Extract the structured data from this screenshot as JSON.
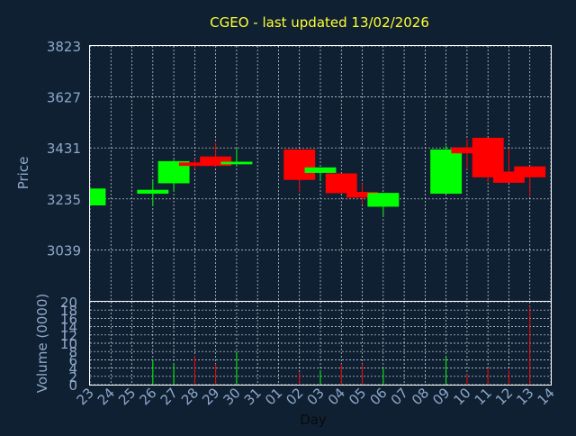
{
  "colors": {
    "background": "#0f2033",
    "plot_border": "#ffffff",
    "grid": "#ffffff",
    "title": "#ffff33",
    "axis_text": "#8fa8c8",
    "up": "#00ff00",
    "down": "#ff0000"
  },
  "chart_data": [
    {
      "type": "candlestick",
      "title": "CGEO - last updated 13/02/2026",
      "ylabel": "Price",
      "xlabel": "Day",
      "ylim": [
        2843,
        3823
      ],
      "y_ticks": [
        3823,
        3627,
        3431,
        3235,
        3039
      ],
      "grid": true,
      "x_tick_labels": [
        "23",
        "24",
        "25",
        "26",
        "27",
        "28",
        "29",
        "30",
        "31",
        "01",
        "02",
        "03",
        "04",
        "05",
        "06",
        "07",
        "08",
        "09",
        "10",
        "11",
        "12",
        "13",
        "14"
      ],
      "candles": [
        {
          "day": "23",
          "open": 3210,
          "close": 3275,
          "high": 3275,
          "low": 3210
        },
        {
          "day": "26",
          "open": 3255,
          "close": 3270,
          "high": 3305,
          "low": 3210
        },
        {
          "day": "27",
          "open": 3295,
          "close": 3380,
          "high": 3385,
          "low": 3265
        },
        {
          "day": "28",
          "open": 3375,
          "close": 3362,
          "high": 3390,
          "low": 3350
        },
        {
          "day": "29",
          "open": 3398,
          "close": 3362,
          "high": 3450,
          "low": 3360
        },
        {
          "day": "30",
          "open": 3368,
          "close": 3378,
          "high": 3432,
          "low": 3368
        },
        {
          "day": "02",
          "open": 3425,
          "close": 3308,
          "high": 3425,
          "low": 3260
        },
        {
          "day": "03",
          "open": 3335,
          "close": 3356,
          "high": 3356,
          "low": 3305
        },
        {
          "day": "04",
          "open": 3333,
          "close": 3257,
          "high": 3333,
          "low": 3257
        },
        {
          "day": "05",
          "open": 3262,
          "close": 3240,
          "high": 3295,
          "low": 3215
        },
        {
          "day": "06",
          "open": 3205,
          "close": 3258,
          "high": 3258,
          "low": 3170
        },
        {
          "day": "09",
          "open": 3255,
          "close": 3425,
          "high": 3440,
          "low": 3255
        },
        {
          "day": "10",
          "open": 3433,
          "close": 3410,
          "high": 3465,
          "low": 3350
        },
        {
          "day": "11",
          "open": 3470,
          "close": 3318,
          "high": 3470,
          "low": 3300
        },
        {
          "day": "12",
          "open": 3340,
          "close": 3297,
          "high": 3430,
          "low": 3297
        },
        {
          "day": "13",
          "open": 3360,
          "close": 3318,
          "high": 3360,
          "low": 3245
        }
      ]
    },
    {
      "type": "bar",
      "ylabel": "Volume (0000)",
      "xlabel": "Day",
      "ylim": [
        0,
        20
      ],
      "y_ticks": [
        0,
        2,
        4,
        6,
        8,
        10,
        12,
        14,
        16,
        18,
        20
      ],
      "grid": true,
      "bars": [
        {
          "day": "26",
          "value": 6
        },
        {
          "day": "27",
          "value": 5
        },
        {
          "day": "28",
          "value": 7
        },
        {
          "day": "29",
          "value": 5
        },
        {
          "day": "30",
          "value": 8
        },
        {
          "day": "02",
          "value": 3
        },
        {
          "day": "03",
          "value": 3.5
        },
        {
          "day": "04",
          "value": 5
        },
        {
          "day": "05",
          "value": 5
        },
        {
          "day": "06",
          "value": 4
        },
        {
          "day": "09",
          "value": 7
        },
        {
          "day": "10",
          "value": 2.5
        },
        {
          "day": "11",
          "value": 4
        },
        {
          "day": "12",
          "value": 3.5
        },
        {
          "day": "13",
          "value": 19
        }
      ]
    }
  ]
}
